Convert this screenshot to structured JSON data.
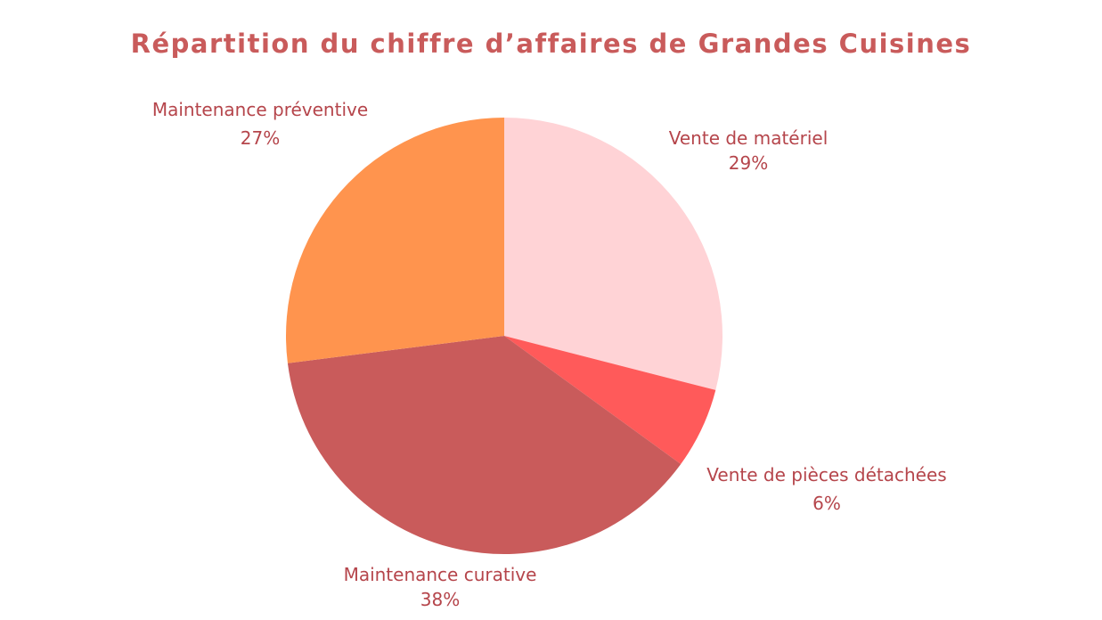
{
  "chart_data": {
    "type": "pie",
    "title": "Répartition du chiffre d’affaires de Grandes Cuisines",
    "slices": [
      {
        "label": "Vente de matériel",
        "value": 29,
        "value_label": "29%",
        "color": "#FFD3D6"
      },
      {
        "label": "Vente de pièces détachées",
        "value": 6,
        "value_label": "6%",
        "color": "#FF5A5A"
      },
      {
        "label": "Maintenance curative",
        "value": 38,
        "value_label": "38%",
        "color": "#C95B5B"
      },
      {
        "label": "Maintenance préventive",
        "value": 27,
        "value_label": "27%",
        "color": "#FF944E"
      }
    ],
    "start": "12 o'clock",
    "direction": "clockwise"
  },
  "colors": {
    "title": "#C95B5B",
    "labels": "#B5454B"
  }
}
